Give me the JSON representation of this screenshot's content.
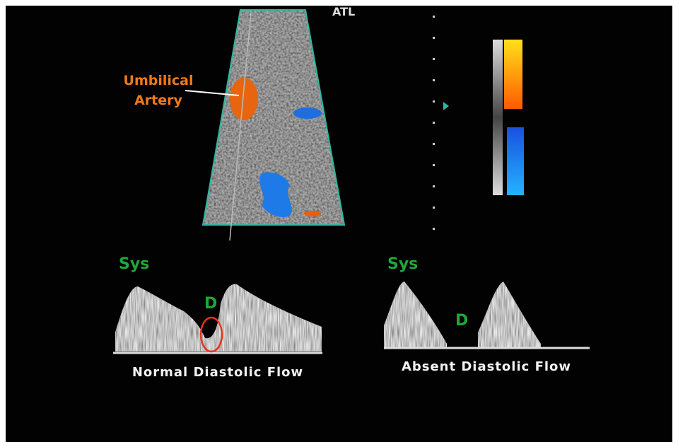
{
  "logo": "ATL",
  "annotation": {
    "line1": "Umbilical",
    "line2": "Artery"
  },
  "panels": [
    {
      "systole_label": "Sys",
      "diastole_label": "D",
      "caption": "Normal Diastolic Flow"
    },
    {
      "systole_label": "Sys",
      "diastole_label": "D",
      "caption": "Absent Diastolic Flow"
    }
  ]
}
